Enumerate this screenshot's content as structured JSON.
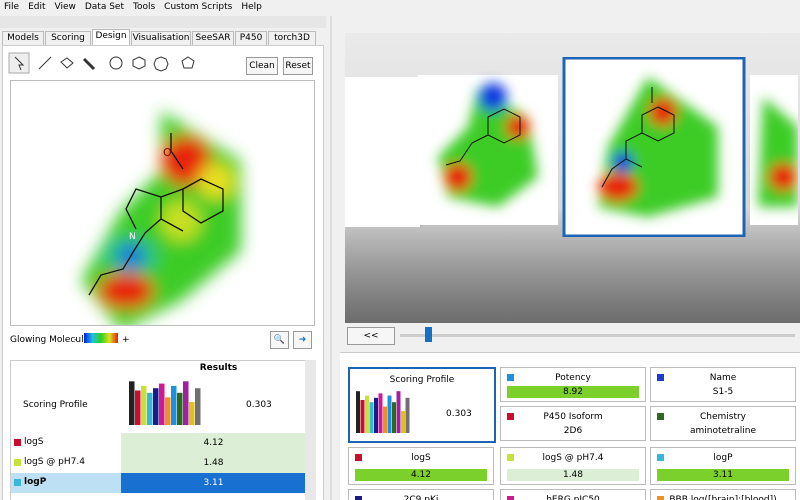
{
  "menu": [
    "File",
    "Edit",
    "View",
    "Data Set",
    "Tools",
    "Custom Scripts",
    "Help"
  ],
  "tabs": [
    "Models",
    "Scoring",
    "Design",
    "Visualisation",
    "SeeSAR",
    "P450",
    "torch3D"
  ],
  "buttons": {
    "clean": "Clean",
    "reset": "Reset"
  },
  "legend": {
    "label": "Glowing Molecule:",
    "minus": "-",
    "plus": "+"
  },
  "results": {
    "header": "Results",
    "rows": [
      {
        "name": "Scoring Profile",
        "value": "0.303"
      },
      {
        "name": "logS",
        "value": "4.12",
        "color": "#c8102e"
      },
      {
        "name": "logS @ pH7.4",
        "value": "1.48",
        "color": "#c8e03c"
      },
      {
        "name": "logP",
        "value": "3.11",
        "color": "#38b8d8"
      }
    ]
  },
  "carousel": {
    "back": "<<"
  },
  "cards": [
    {
      "title": "Potency",
      "value": "8.92",
      "color": "#1e90e0",
      "bar": true
    },
    {
      "title": "Name",
      "value": "S1-5",
      "color": "#1a3cc8"
    },
    {
      "title": "P450 Isoform",
      "value": "2D6",
      "color": "#c8102e"
    },
    {
      "title": "Chemistry",
      "value": "aminotetraline",
      "color": "#2e6a1e"
    },
    {
      "title": "logS",
      "value": "4.12",
      "color": "#c8102e",
      "bar": true
    },
    {
      "title": "logS @ pH7.4",
      "value": "1.48",
      "color": "#c8e03c",
      "bar": true,
      "pale": true
    },
    {
      "title": "logP",
      "value": "3.11",
      "color": "#38b8d8",
      "bar": true
    },
    {
      "title": "2C9 pKi",
      "color": "#1a1a8c"
    },
    {
      "title": "hERG pIC50",
      "color": "#d01890"
    },
    {
      "title": "BBB log([brain]:[blood])",
      "color": "#f09020"
    }
  ],
  "profile_card": {
    "title": "Scoring Profile",
    "value": "0.303"
  }
}
